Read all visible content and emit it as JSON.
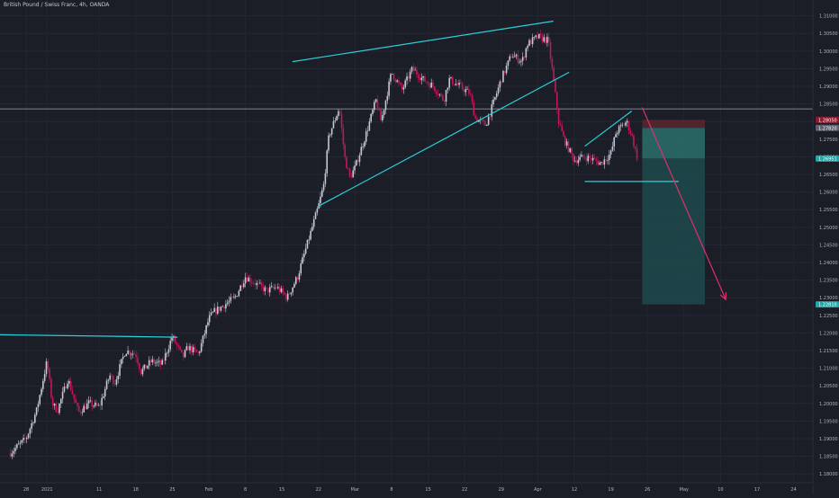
{
  "header": {
    "title": "British Pound / Swiss Franc, 4h, OANDA"
  },
  "colors": {
    "background": "#1b1d27",
    "candle_up": "#c5c8d3",
    "candle_down": "#c2185b",
    "trendline": "#2ad0d8",
    "arrow": "#e0306a",
    "reference_line": "#c5c8d3",
    "stop_zone": "#5b2630",
    "target_zone": "#1d4a4d",
    "current_price_badge": "#1fa8a8",
    "entry_badge": "#8b1a2e"
  },
  "chart_data": {
    "type": "candlestick",
    "title": "British Pound / Swiss Franc, 4h, OANDA",
    "ylim": [
      1.1775,
      1.3145
    ],
    "y_ticks": [
      "1.31000",
      "1.30500",
      "1.30000",
      "1.29500",
      "1.29000",
      "1.28500",
      "1.28000",
      "1.27500",
      "1.27000",
      "1.26500",
      "1.26000",
      "1.25500",
      "1.25000",
      "1.24500",
      "1.24000",
      "1.23500",
      "1.23000",
      "1.22500",
      "1.22000",
      "1.21500",
      "1.21000",
      "1.20500",
      "1.20000",
      "1.19500",
      "1.19000",
      "1.18500",
      "1.18000"
    ],
    "y_tick_values": [
      1.31,
      1.305,
      1.3,
      1.295,
      1.29,
      1.285,
      1.28,
      1.275,
      1.27,
      1.265,
      1.26,
      1.255,
      1.25,
      1.245,
      1.24,
      1.235,
      1.23,
      1.225,
      1.22,
      1.215,
      1.21,
      1.205,
      1.2,
      1.195,
      1.19,
      1.185,
      1.18
    ],
    "x_ticks": [
      "28",
      "2021",
      "11",
      "18",
      "25",
      "Feb",
      "8",
      "15",
      "22",
      "Mar",
      "8",
      "15",
      "22",
      "29",
      "Apr",
      "12",
      "19",
      "26",
      "May",
      "10",
      "17",
      "24"
    ],
    "x_tick_days": [
      0,
      4,
      14,
      21,
      28,
      35,
      42,
      49,
      56,
      63,
      70,
      77,
      84,
      91,
      98,
      105,
      112,
      119,
      126,
      133,
      140,
      147
    ],
    "price_path": [
      [
        -3,
        1.186
      ],
      [
        0,
        1.19
      ],
      [
        2,
        1.198
      ],
      [
        4,
        1.212
      ],
      [
        5,
        1.2
      ],
      [
        6,
        1.198
      ],
      [
        8,
        1.207
      ],
      [
        10,
        1.1975
      ],
      [
        12,
        1.2
      ],
      [
        14,
        1.199
      ],
      [
        16,
        1.208
      ],
      [
        17,
        1.206
      ],
      [
        19,
        1.215
      ],
      [
        21,
        1.214
      ],
      [
        22,
        1.209
      ],
      [
        24,
        1.212
      ],
      [
        26,
        1.211
      ],
      [
        28,
        1.219
      ],
      [
        30,
        1.213
      ],
      [
        31,
        1.216
      ],
      [
        33,
        1.214
      ],
      [
        35,
        1.224
      ],
      [
        36,
        1.226
      ],
      [
        38,
        1.228
      ],
      [
        40,
        1.23
      ],
      [
        42,
        1.236
      ],
      [
        44,
        1.234
      ],
      [
        46,
        1.232
      ],
      [
        48,
        1.233
      ],
      [
        50,
        1.23
      ],
      [
        52,
        1.236
      ],
      [
        54,
        1.246
      ],
      [
        56,
        1.256
      ],
      [
        57,
        1.262
      ],
      [
        58,
        1.276
      ],
      [
        60,
        1.284
      ],
      [
        61,
        1.27
      ],
      [
        62,
        1.264
      ],
      [
        63,
        1.267
      ],
      [
        65,
        1.276
      ],
      [
        67,
        1.286
      ],
      [
        68,
        1.28
      ],
      [
        70,
        1.294
      ],
      [
        72,
        1.289
      ],
      [
        74,
        1.295
      ],
      [
        76,
        1.292
      ],
      [
        78,
        1.29
      ],
      [
        80,
        1.286
      ],
      [
        81,
        1.292
      ],
      [
        83,
        1.29
      ],
      [
        85,
        1.288
      ],
      [
        86,
        1.281
      ],
      [
        88,
        1.279
      ],
      [
        89,
        1.283
      ],
      [
        91,
        1.292
      ],
      [
        93,
        1.299
      ],
      [
        95,
        1.297
      ],
      [
        96,
        1.302
      ],
      [
        98,
        1.304
      ],
      [
        100,
        1.303
      ],
      [
        101,
        1.292
      ],
      [
        102,
        1.28
      ],
      [
        103,
        1.275
      ],
      [
        105,
        1.269
      ],
      [
        107,
        1.27
      ],
      [
        109,
        1.269
      ],
      [
        110,
        1.268
      ],
      [
        112,
        1.271
      ],
      [
        113,
        1.277
      ],
      [
        115,
        1.28
      ],
      [
        116,
        1.276
      ],
      [
        117,
        1.27
      ]
    ],
    "current_price": 1.26951,
    "entry_price": 1.2782,
    "stop_price": 1.2805,
    "target_price": 1.2281,
    "y_badges": [
      {
        "label": "1.28050",
        "value": 1.2805,
        "color": "#8b1a2e"
      },
      {
        "label": "1.27820",
        "value": 1.2782,
        "color": "#5c6070"
      },
      {
        "label": "1.26951",
        "value": 1.26951,
        "color": "#1fa8a8"
      },
      {
        "label": "1.22810",
        "value": 1.2281,
        "color": "#1fa8a8"
      }
    ],
    "horizontal_line": 1.2836,
    "trendlines": [
      {
        "name": "",
        "from": [
          -5,
          1.2195
        ],
        "to": [
          29,
          1.2188
        ]
      },
      {
        "name": "",
        "from": [
          51,
          1.297
        ],
        "to": [
          101,
          1.3085
        ]
      },
      {
        "name": "",
        "from": [
          56,
          1.256
        ],
        "to": [
          104,
          1.294
        ]
      },
      {
        "name": "",
        "from": [
          107,
          1.273
        ],
        "to": [
          116,
          1.283
        ]
      },
      {
        "name": "",
        "from": [
          107,
          1.263
        ],
        "to": [
          125,
          1.263
        ]
      }
    ],
    "projection_arrow": {
      "from": [
        118,
        1.284
      ],
      "to": [
        134,
        1.2295
      ]
    },
    "risk_reward_box": {
      "x_from": 118,
      "x_to": 130
    }
  }
}
